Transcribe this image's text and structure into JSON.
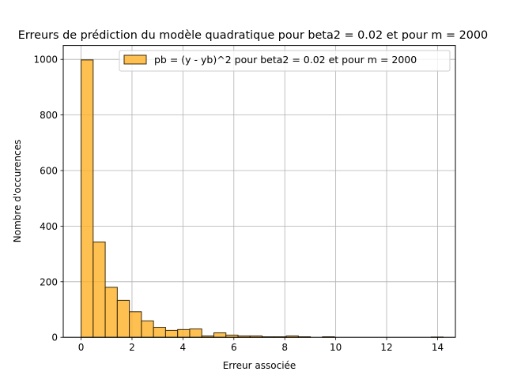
{
  "chart_data": {
    "type": "histogram",
    "title": "Erreurs de prédiction du modèle quadratique pour beta2 = 0.02 et pour m = 2000",
    "xlabel": "Erreur associée",
    "ylabel": "Nombre d'occurences",
    "xlim": [
      -0.7,
      14.7
    ],
    "ylim": [
      0,
      1050
    ],
    "xticks": [
      0,
      2,
      4,
      6,
      8,
      10,
      12,
      14
    ],
    "yticks": [
      0,
      200,
      400,
      600,
      800,
      1000
    ],
    "grid": true,
    "legend_position": "top-right",
    "bar_color": "#ffb027",
    "edge_color": "#3a2a0a",
    "series": [
      {
        "name": "pb = (y - yb)^2 pour beta2 = 0.02 et pour m = 2000",
        "bin_edges": [
          0.0,
          0.474,
          0.948,
          1.422,
          1.896,
          2.37,
          2.844,
          3.318,
          3.792,
          4.266,
          4.74,
          5.214,
          5.688,
          6.162,
          6.636,
          7.11,
          7.584,
          8.058,
          8.532,
          9.006,
          9.48,
          9.954,
          10.428,
          10.902,
          11.376,
          11.85,
          12.324,
          12.798,
          13.272,
          13.746,
          14.22
        ],
        "counts": [
          998,
          343,
          180,
          133,
          92,
          59,
          36,
          25,
          28,
          30,
          5,
          16,
          8,
          5,
          5,
          2,
          2,
          5,
          2,
          0,
          2,
          0,
          0,
          0,
          0,
          0,
          0,
          0,
          0,
          1
        ]
      }
    ]
  }
}
